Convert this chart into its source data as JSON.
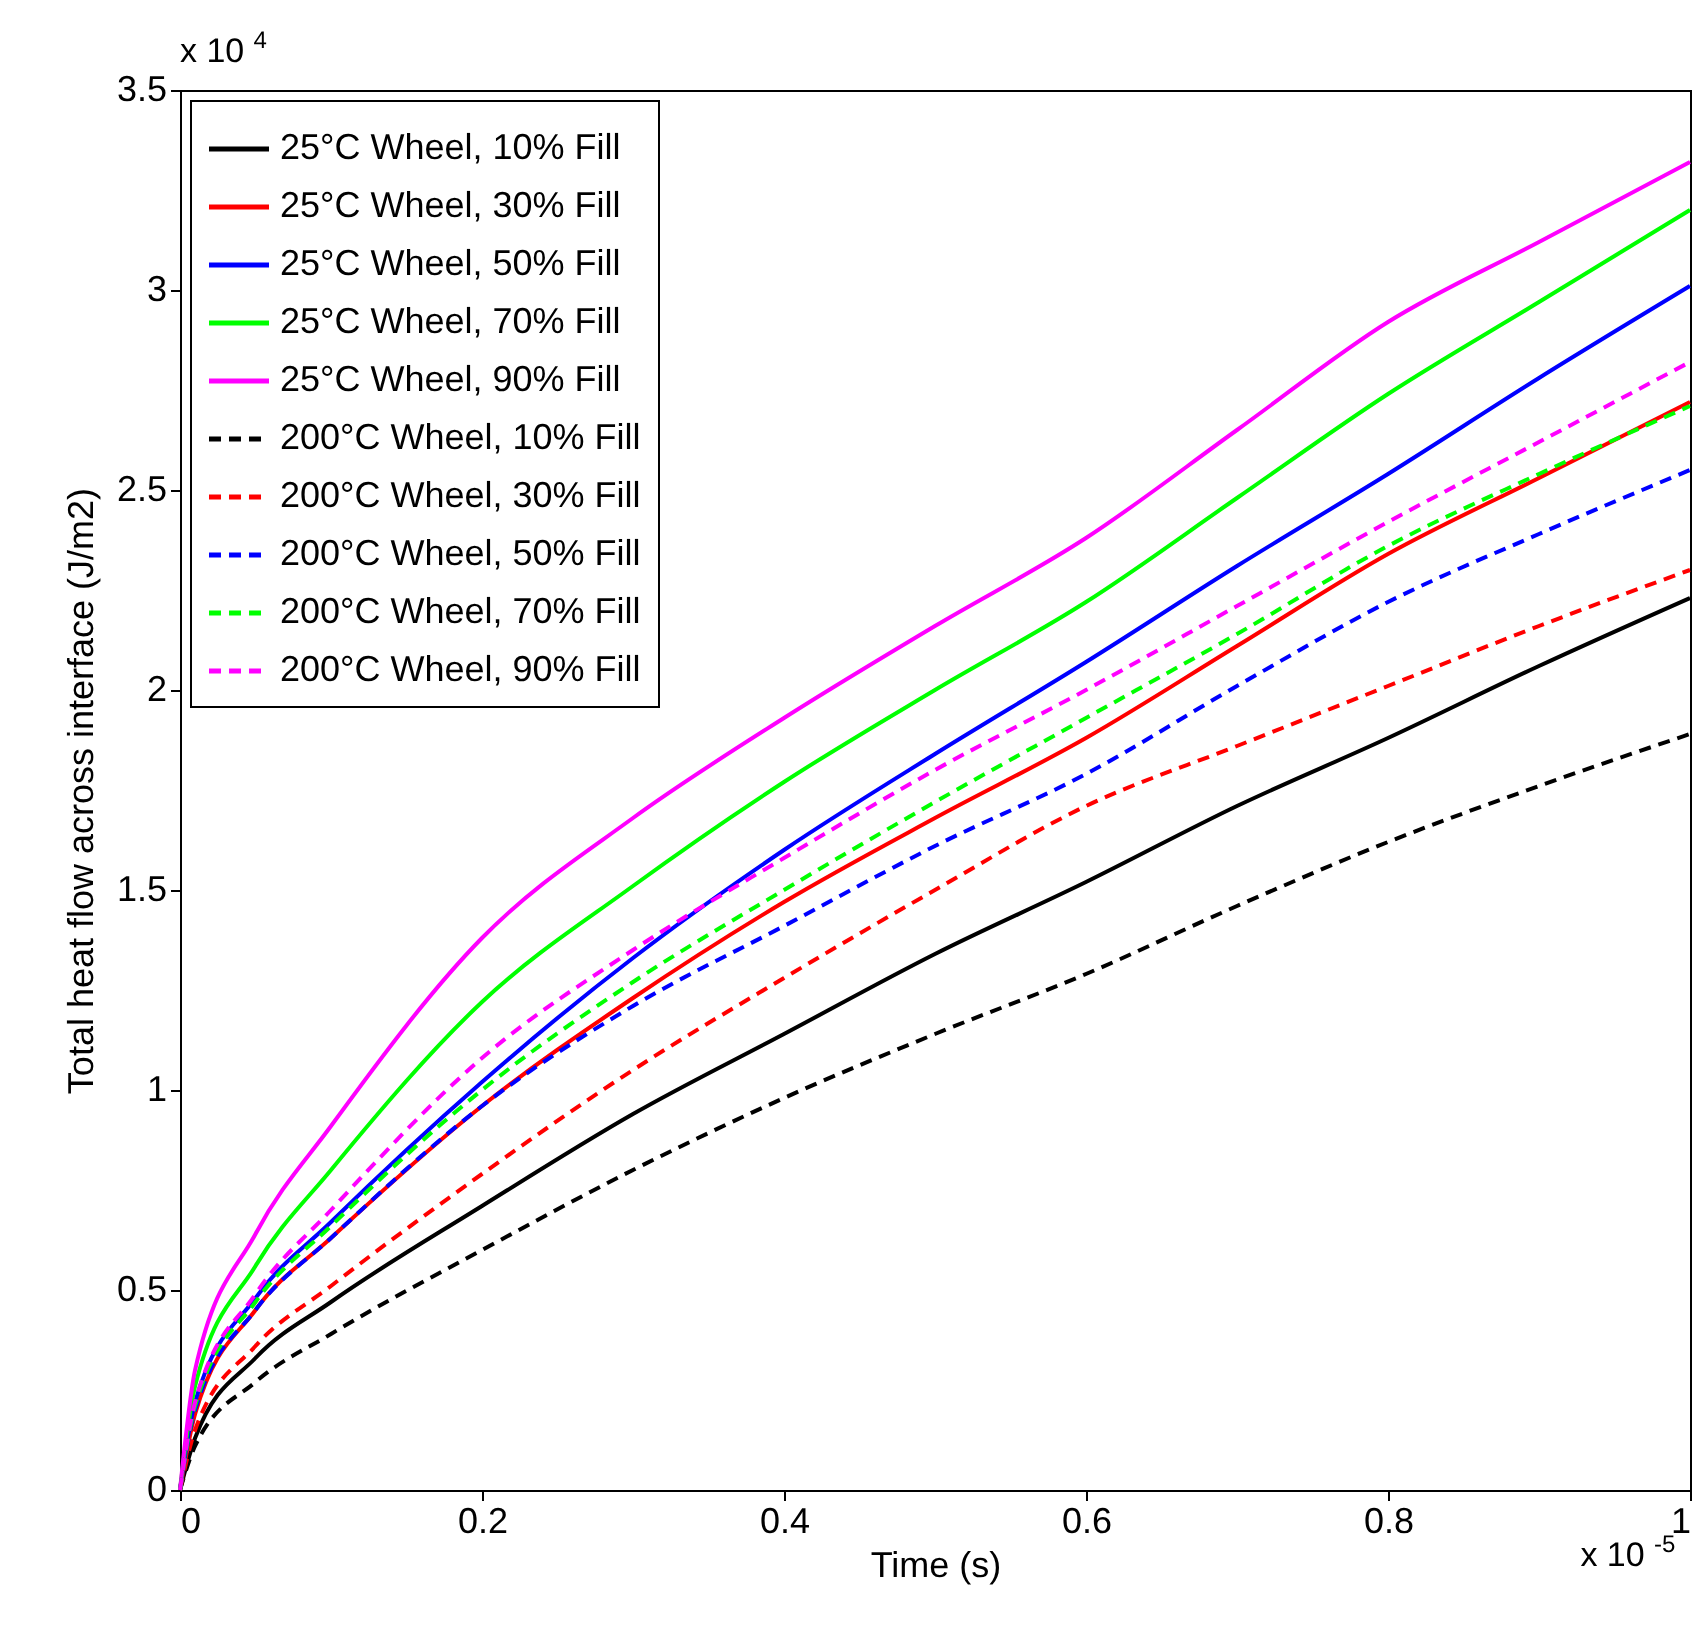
{
  "chart_data": {
    "type": "line",
    "xlabel": "Time (s)",
    "ylabel": "Total heat flow across interface (J/m2)",
    "annotations": [
      "x 10$^{4}$",
      "x 10$^{-5}$"
    ],
    "x": [
      0,
      0.01,
      0.05,
      0.1,
      0.2,
      0.3,
      0.4,
      0.5,
      0.6,
      0.7,
      0.8,
      0.9,
      1
    ],
    "xlim": [
      0,
      1
    ],
    "xticks": [
      0,
      0.2,
      0.4,
      0.6,
      0.8,
      1
    ],
    "ylim": [
      0,
      3.5
    ],
    "yticks": [
      0,
      0.5,
      1,
      1.5,
      2,
      2.5,
      3,
      3.5
    ],
    "grid": false,
    "legend": "top left",
    "series": [
      {
        "name": "25°C Wheel, 10% Fill",
        "color": "#000000",
        "line_style": "solid",
        "values": [
          0,
          0.13,
          0.33,
          0.47,
          0.71,
          0.94,
          1.14,
          1.34,
          1.52,
          1.71,
          1.88,
          2.06,
          2.23
        ]
      },
      {
        "name": "25°C Wheel, 30% Fill",
        "color": "#ff0000",
        "line_style": "solid",
        "values": [
          0,
          0.19,
          0.45,
          0.63,
          0.96,
          1.23,
          1.47,
          1.68,
          1.88,
          2.11,
          2.34,
          2.53,
          2.72
        ]
      },
      {
        "name": "25°C Wheel, 50% Fill",
        "color": "#0000ff",
        "line_style": "solid",
        "values": [
          0,
          0.22,
          0.48,
          0.67,
          1.02,
          1.33,
          1.6,
          1.84,
          2.07,
          2.31,
          2.54,
          2.78,
          3.01
        ]
      },
      {
        "name": "25°C Wheel, 70% Fill",
        "color": "#00ff00",
        "line_style": "solid",
        "values": [
          0,
          0.26,
          0.56,
          0.8,
          1.22,
          1.51,
          1.77,
          2.0,
          2.22,
          2.48,
          2.74,
          2.97,
          3.2
        ]
      },
      {
        "name": "25°C Wheel, 90% Fill",
        "color": "#ff00ff",
        "line_style": "solid",
        "values": [
          0,
          0.3,
          0.64,
          0.91,
          1.38,
          1.68,
          1.93,
          2.16,
          2.38,
          2.65,
          2.92,
          3.12,
          3.32
        ]
      },
      {
        "name": "200°C Wheel, 10% Fill",
        "color": "#000000",
        "line_style": "dashed",
        "values": [
          0,
          0.11,
          0.27,
          0.39,
          0.6,
          0.8,
          0.98,
          1.14,
          1.29,
          1.46,
          1.62,
          1.76,
          1.89
        ]
      },
      {
        "name": "200°C Wheel, 30% Fill",
        "color": "#ff0000",
        "line_style": "dashed",
        "values": [
          0,
          0.15,
          0.36,
          0.51,
          0.79,
          1.05,
          1.28,
          1.5,
          1.71,
          1.86,
          2.01,
          2.16,
          2.3
        ]
      },
      {
        "name": "200°C Wheel, 50% Fill",
        "color": "#0000ff",
        "line_style": "dashed",
        "values": [
          0,
          0.2,
          0.45,
          0.63,
          0.96,
          1.21,
          1.41,
          1.61,
          1.79,
          2.01,
          2.22,
          2.39,
          2.55
        ]
      },
      {
        "name": "200°C Wheel, 70% Fill",
        "color": "#00ff00",
        "line_style": "dashed",
        "values": [
          0,
          0.21,
          0.47,
          0.66,
          1.0,
          1.27,
          1.5,
          1.72,
          1.93,
          2.14,
          2.36,
          2.54,
          2.71
        ]
      },
      {
        "name": "200°C Wheel, 90% Fill",
        "color": "#ff00ff",
        "line_style": "dashed",
        "values": [
          0,
          0.22,
          0.49,
          0.7,
          1.08,
          1.35,
          1.58,
          1.8,
          2.0,
          2.21,
          2.42,
          2.62,
          2.82
        ]
      }
    ]
  }
}
